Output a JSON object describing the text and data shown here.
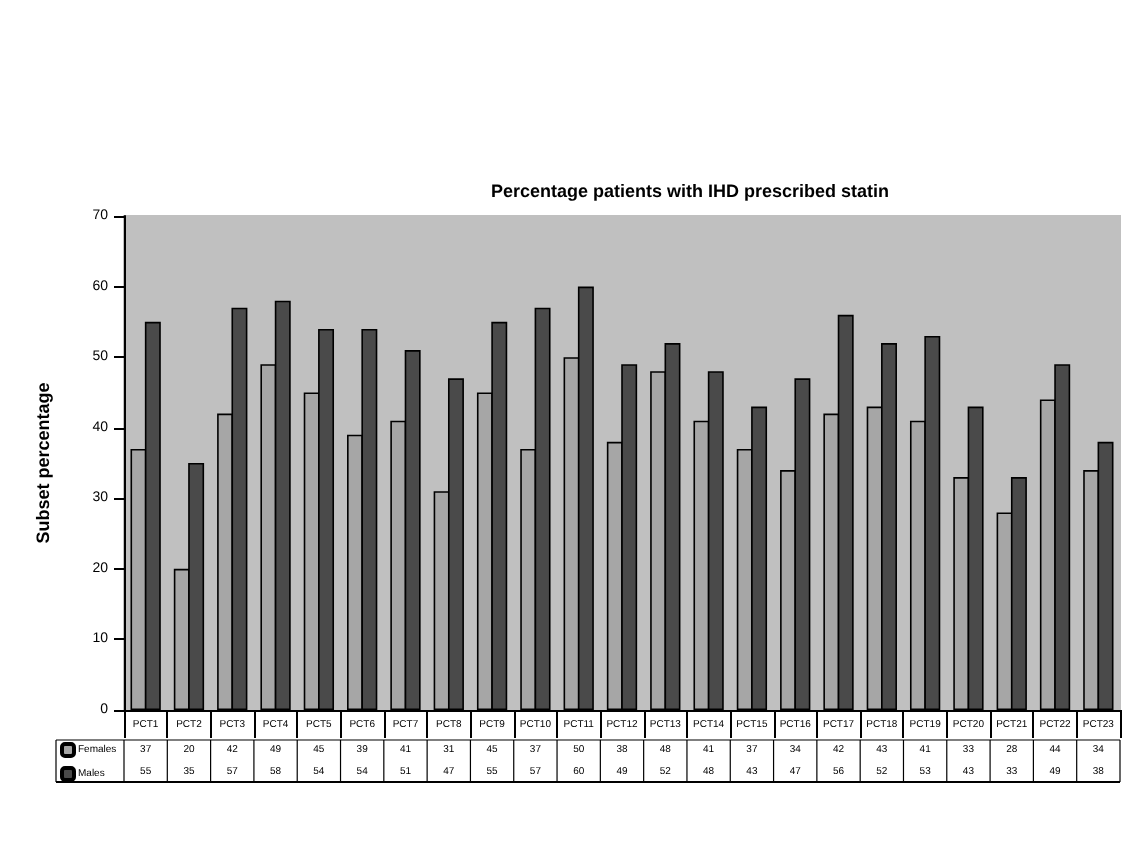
{
  "chart_data": {
    "type": "bar",
    "title": "Percentage patients with IHD prescribed statin",
    "ylabel": "Subset percentage",
    "categories": [
      "PCT1",
      "PCT2",
      "PCT3",
      "PCT4",
      "PCT5",
      "PCT6",
      "PCT7",
      "PCT8",
      "PCT9",
      "PCT10",
      "PCT11",
      "PCT12",
      "PCT13",
      "PCT14",
      "PCT15",
      "PCT16",
      "PCT17",
      "PCT18",
      "PCT19",
      "PCT20",
      "PCT21",
      "PCT22",
      "PCT23"
    ],
    "series": [
      {
        "name": "Females",
        "color": "#a6a6a6",
        "values": [
          37,
          20,
          42,
          49,
          45,
          39,
          41,
          31,
          45,
          37,
          50,
          38,
          48,
          41,
          37,
          34,
          42,
          43,
          41,
          33,
          28,
          44,
          34
        ]
      },
      {
        "name": "Males",
        "color": "#4a4a4a",
        "values": [
          55,
          35,
          57,
          58,
          54,
          54,
          51,
          47,
          55,
          57,
          60,
          49,
          52,
          48,
          43,
          47,
          56,
          52,
          53,
          43,
          33,
          49,
          38
        ]
      }
    ],
    "ylim": [
      0,
      70
    ],
    "yticks": [
      0,
      10,
      20,
      30,
      40,
      50,
      60,
      70
    ],
    "grid": false,
    "legend": "bottom left",
    "data_labels": true
  }
}
